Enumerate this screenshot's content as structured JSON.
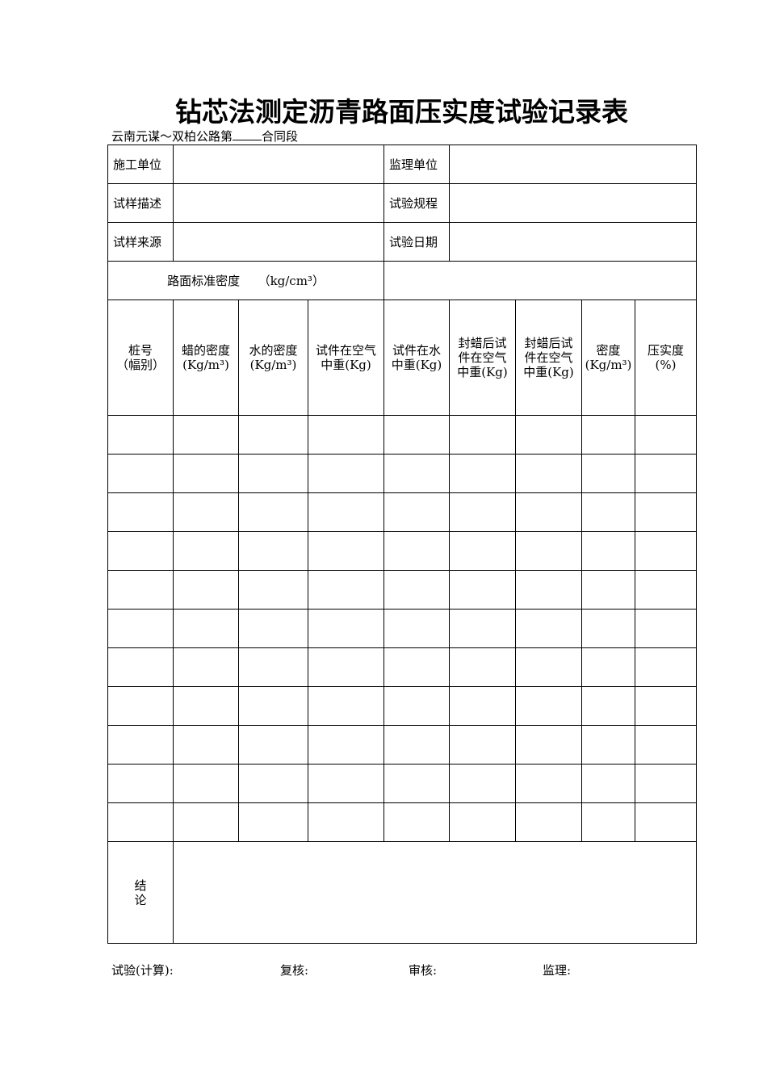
{
  "title": "钻芯法测定沥青路面压实度试验记录表",
  "subtitle": {
    "prefix": "云南元谋～双柏公路第",
    "suffix": "合同段"
  },
  "info": {
    "construction_unit": "施工单位",
    "supervision_unit": "监理单位",
    "sample_desc": "试样描述",
    "test_spec": "试验规程",
    "sample_source": "试样来源",
    "test_date": "试验日期",
    "std_density": "路面标准密度　　（kg/cm³）"
  },
  "columns": [
    [
      "桩号",
      "（幅别）"
    ],
    [
      "蜡的密度",
      "(Kg/m³)"
    ],
    [
      "水的密度",
      "(Kg/m³)"
    ],
    [
      "试件在空气",
      "中重(Kg)"
    ],
    [
      "试件在水",
      "中重(Kg)"
    ],
    [
      "封蜡后试",
      "件在空气",
      "中重(Kg)"
    ],
    [
      "封蜡后试",
      "件在空气",
      "中重(Kg)"
    ],
    [
      "密度",
      "(Kg/m³)"
    ],
    [
      "压实度",
      "(%)"
    ]
  ],
  "data_row_count": 11,
  "conclusion": [
    "结",
    "论"
  ],
  "footer": {
    "test": "试验(计算):",
    "review": "复核:",
    "audit": "审核:",
    "supervisor": "监理:"
  }
}
